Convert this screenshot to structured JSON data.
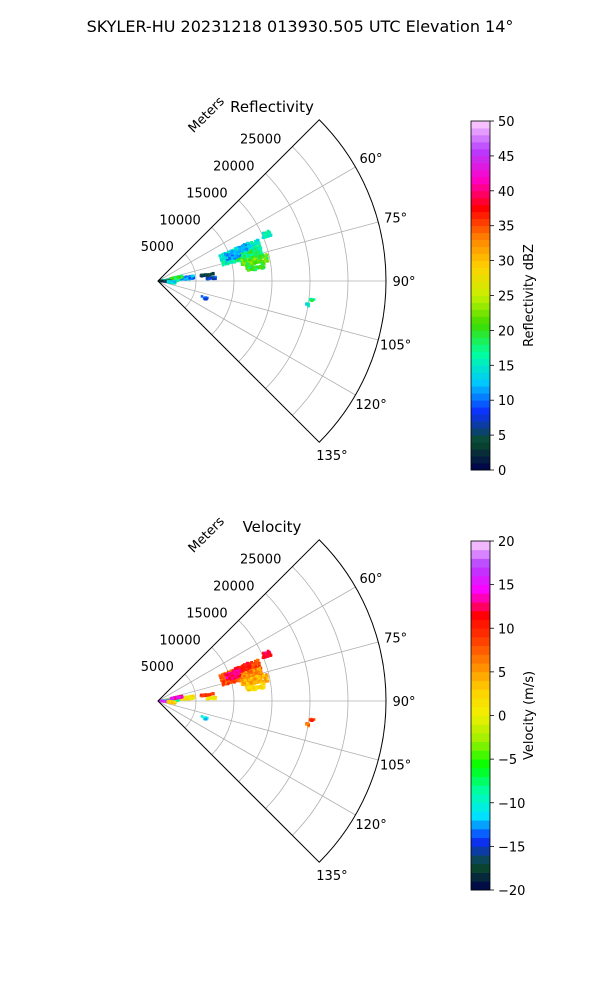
{
  "figure": {
    "suptitle": "SKYLER-HU  20231218  013930.505 UTC Elevation 14°"
  },
  "chart_data": [
    {
      "type": "heatmap",
      "subtype": "polar-sector-ppi",
      "title": "Reflectivity",
      "radial_axis_label": "Meters",
      "radial_ticks": [
        5000,
        10000,
        15000,
        20000,
        25000
      ],
      "radial_tick_labels": [
        "5000",
        "10000",
        "15000",
        "20000",
        "25000"
      ],
      "rlim": [
        0,
        30000
      ],
      "angular_ticks_deg": [
        60,
        75,
        90,
        105,
        120,
        135
      ],
      "angular_tick_labels": [
        "60°",
        "75°",
        "90°",
        "105°",
        "120°",
        "135°"
      ],
      "azimuth_range_deg": [
        45,
        135
      ],
      "grid": true,
      "colorbar": {
        "label": "Reflectivity dBZ",
        "range": [
          0,
          50
        ],
        "ticks": [
          0,
          5,
          10,
          15,
          20,
          25,
          30,
          35,
          40,
          45,
          50
        ],
        "tick_labels": [
          "0",
          "5",
          "10",
          "15",
          "20",
          "25",
          "30",
          "35",
          "40",
          "45",
          "50"
        ],
        "levels": 50,
        "palette": [
          "#00004c",
          "#0b4d2b",
          "#0b2fff",
          "#00c8ff",
          "#00ffa0",
          "#3cdc00",
          "#c8f000",
          "#ffd200",
          "#ff8000",
          "#ff0000",
          "#ff00c8",
          "#b43cff",
          "#ffd2ff"
        ]
      },
      "echoes": [
        {
          "az": 72,
          "r": 11500,
          "dr": 5500,
          "daz": 9,
          "value": 15
        },
        {
          "az": 69,
          "r": 12000,
          "dr": 2000,
          "daz": 4,
          "value": 13
        },
        {
          "az": 74,
          "r": 12500,
          "dr": 3500,
          "daz": 4,
          "value": 18
        },
        {
          "az": 78,
          "r": 13000,
          "dr": 3500,
          "daz": 4,
          "value": 21
        },
        {
          "az": 82,
          "r": 13000,
          "dr": 2500,
          "daz": 3,
          "value": 20
        },
        {
          "az": 71,
          "r": 10500,
          "dr": 2000,
          "daz": 5,
          "value": 12
        },
        {
          "az": 67,
          "r": 15500,
          "dr": 1200,
          "daz": 3,
          "value": 16
        },
        {
          "az": 83,
          "r": 6500,
          "dr": 1800,
          "daz": 2,
          "value": 4
        },
        {
          "az": 87,
          "r": 7000,
          "dr": 1200,
          "daz": 2,
          "value": 8
        },
        {
          "az": 84,
          "r": 3000,
          "dr": 3500,
          "daz": 5,
          "value": 11
        },
        {
          "az": 87,
          "r": 1500,
          "dr": 2500,
          "daz": 5,
          "value": 16
        },
        {
          "az": 80,
          "r": 2500,
          "dr": 1500,
          "daz": 4,
          "value": 19
        },
        {
          "az": 91,
          "r": 1000,
          "dr": 1500,
          "daz": 4,
          "value": 3
        },
        {
          "az": 95,
          "r": 1800,
          "dr": 1000,
          "daz": 6,
          "value": 14
        },
        {
          "az": 110,
          "r": 6500,
          "dr": 800,
          "daz": 2,
          "value": 9
        },
        {
          "az": 97,
          "r": 20500,
          "dr": 800,
          "daz": 1,
          "value": 17
        },
        {
          "az": 99,
          "r": 20000,
          "dr": 600,
          "daz": 1,
          "value": 15
        }
      ]
    },
    {
      "type": "heatmap",
      "subtype": "polar-sector-ppi",
      "title": "Velocity",
      "radial_axis_label": "Meters",
      "radial_ticks": [
        5000,
        10000,
        15000,
        20000,
        25000
      ],
      "radial_tick_labels": [
        "5000",
        "10000",
        "15000",
        "20000",
        "25000"
      ],
      "rlim": [
        0,
        30000
      ],
      "angular_ticks_deg": [
        60,
        75,
        90,
        105,
        120,
        135
      ],
      "angular_tick_labels": [
        "60°",
        "75°",
        "90°",
        "105°",
        "120°",
        "135°"
      ],
      "azimuth_range_deg": [
        45,
        135
      ],
      "grid": true,
      "colorbar": {
        "label": "Velocity (m/s)",
        "range": [
          -20,
          20
        ],
        "ticks": [
          -20,
          -15,
          -10,
          -5,
          0,
          5,
          10,
          15,
          20
        ],
        "tick_labels": [
          "−20",
          "−15",
          "−10",
          "−5",
          "0",
          "5",
          "10",
          "15",
          "20"
        ],
        "levels": 40,
        "palette": [
          "#00004c",
          "#0b4d2b",
          "#0b2fff",
          "#00e6ff",
          "#00ffa0",
          "#00ff00",
          "#9cf000",
          "#f0f000",
          "#ffd200",
          "#ff8c00",
          "#ff4000",
          "#ff0000",
          "#ff00ff",
          "#b43cff",
          "#ffd2ff"
        ]
      },
      "echoes": [
        {
          "az": 72,
          "r": 11500,
          "dr": 5500,
          "daz": 9,
          "value": 8
        },
        {
          "az": 69,
          "r": 12000,
          "dr": 2000,
          "daz": 4,
          "value": 11
        },
        {
          "az": 74,
          "r": 12500,
          "dr": 3500,
          "daz": 4,
          "value": 6
        },
        {
          "az": 78,
          "r": 13000,
          "dr": 3500,
          "daz": 4,
          "value": 4
        },
        {
          "az": 82,
          "r": 13000,
          "dr": 2500,
          "daz": 3,
          "value": 2
        },
        {
          "az": 71,
          "r": 10500,
          "dr": 2000,
          "daz": 5,
          "value": 13
        },
        {
          "az": 67,
          "r": 15500,
          "dr": 1200,
          "daz": 3,
          "value": 12
        },
        {
          "az": 83,
          "r": 6500,
          "dr": 1800,
          "daz": 2,
          "value": 9
        },
        {
          "az": 87,
          "r": 7000,
          "dr": 1200,
          "daz": 2,
          "value": 1
        },
        {
          "az": 84,
          "r": 3000,
          "dr": 3500,
          "daz": 5,
          "value": 1
        },
        {
          "az": 87,
          "r": 1500,
          "dr": 2500,
          "daz": 5,
          "value": -9
        },
        {
          "az": 80,
          "r": 2500,
          "dr": 1500,
          "daz": 4,
          "value": 14
        },
        {
          "az": 91,
          "r": 1000,
          "dr": 1500,
          "daz": 4,
          "value": 16
        },
        {
          "az": 95,
          "r": 1800,
          "dr": 1000,
          "daz": 6,
          "value": 3
        },
        {
          "az": 110,
          "r": 6500,
          "dr": 800,
          "daz": 2,
          "value": -11
        },
        {
          "az": 97,
          "r": 20500,
          "dr": 800,
          "daz": 1,
          "value": 9
        },
        {
          "az": 99,
          "r": 20000,
          "dr": 600,
          "daz": 1,
          "value": 7
        }
      ]
    }
  ]
}
